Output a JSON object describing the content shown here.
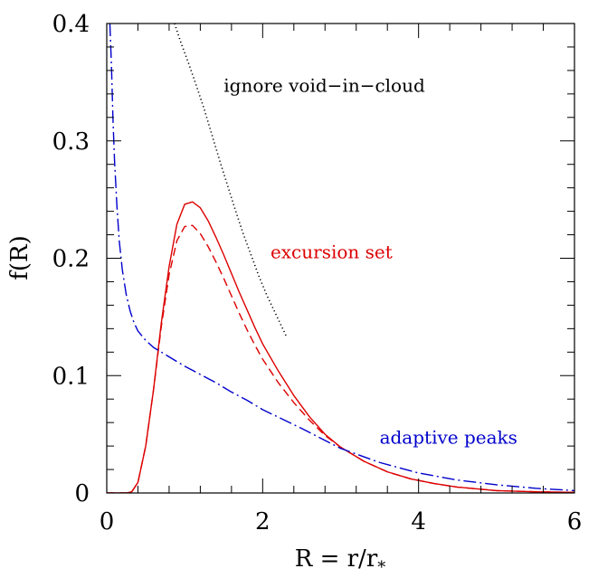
{
  "chart_data": {
    "type": "line",
    "xlabel": "R = r/r",
    "xlabel_subscript": "*",
    "ylabel": "f(R)",
    "xlim": [
      0,
      6
    ],
    "ylim": [
      0,
      0.4
    ],
    "x_major_ticks": [
      0,
      2,
      4,
      6
    ],
    "x_tick_labels": [
      "0",
      "2",
      "4",
      "6"
    ],
    "x_minor_step": 0.4,
    "y_major_ticks": [
      0,
      0.1,
      0.2,
      0.3,
      0.4
    ],
    "y_tick_labels": [
      "0",
      "0.1",
      "0.2",
      "0.3",
      "0.4"
    ],
    "y_minor_step": 0.02,
    "grid": false,
    "annotations": [
      {
        "text": "ignore void−in−cloud",
        "x": 1.5,
        "y": 0.342,
        "color": "#000000"
      },
      {
        "text": "excursion set",
        "x": 2.1,
        "y": 0.2,
        "color": "#dd0000"
      },
      {
        "text": "adaptive peaks",
        "x": 3.5,
        "y": 0.042,
        "color": "#0000cc"
      }
    ],
    "series": [
      {
        "style": "dotted",
        "color": "#000000",
        "x": [
          0.87,
          0.95,
          1.05,
          1.15,
          1.25,
          1.35,
          1.45,
          1.55,
          1.65,
          1.75,
          1.85,
          1.95,
          2.05,
          2.15,
          2.3
        ],
        "y": [
          0.4,
          0.384,
          0.366,
          0.347,
          0.327,
          0.305,
          0.283,
          0.262,
          0.241,
          0.221,
          0.203,
          0.185,
          0.169,
          0.155,
          0.134
        ]
      },
      {
        "style": "solid",
        "color": "#dd0000",
        "x": [
          0,
          0.25,
          0.32,
          0.4,
          0.5,
          0.6,
          0.7,
          0.8,
          0.9,
          1.0,
          1.1,
          1.2,
          1.3,
          1.4,
          1.5,
          1.6,
          1.7,
          1.8,
          1.9,
          2.0,
          2.2,
          2.4,
          2.6,
          2.8,
          3.0,
          3.3,
          3.6,
          3.9,
          4.2,
          4.5,
          5.0,
          5.5,
          6.0
        ],
        "y": [
          0,
          0,
          0.001,
          0.009,
          0.04,
          0.088,
          0.145,
          0.193,
          0.229,
          0.246,
          0.248,
          0.243,
          0.232,
          0.218,
          0.203,
          0.187,
          0.171,
          0.156,
          0.141,
          0.127,
          0.104,
          0.083,
          0.065,
          0.05,
          0.039,
          0.027,
          0.018,
          0.012,
          0.008,
          0.005,
          0.002,
          0.001,
          0.0005
        ]
      },
      {
        "style": "dashed",
        "color": "#dd0000",
        "x": [
          0,
          0.25,
          0.32,
          0.4,
          0.5,
          0.6,
          0.7,
          0.8,
          0.9,
          1.0,
          1.1,
          1.2,
          1.3,
          1.4,
          1.5,
          1.6,
          1.7,
          1.8,
          1.9,
          2.0,
          2.2,
          2.4,
          2.6,
          2.8,
          3.0,
          3.3,
          3.6,
          3.9,
          4.2,
          4.5,
          5.0,
          5.5,
          6.0
        ],
        "y": [
          0,
          0,
          0.001,
          0.009,
          0.04,
          0.088,
          0.142,
          0.186,
          0.215,
          0.227,
          0.228,
          0.221,
          0.21,
          0.197,
          0.183,
          0.168,
          0.153,
          0.139,
          0.126,
          0.114,
          0.094,
          0.077,
          0.062,
          0.049,
          0.039,
          0.027,
          0.018,
          0.012,
          0.008,
          0.005,
          0.002,
          0.001,
          0.0005
        ]
      },
      {
        "style": "dashdot",
        "color": "#0000cc",
        "x": [
          0.04,
          0.06,
          0.08,
          0.1,
          0.13,
          0.16,
          0.2,
          0.25,
          0.3,
          0.35,
          0.4,
          0.5,
          0.6,
          0.7,
          0.8,
          1.0,
          1.2,
          1.4,
          1.6,
          1.8,
          2.0,
          2.5,
          3.0,
          3.5,
          4.0,
          4.5,
          5.0,
          5.5,
          6.0
        ],
        "y": [
          0.4,
          0.365,
          0.318,
          0.283,
          0.245,
          0.215,
          0.19,
          0.169,
          0.155,
          0.145,
          0.138,
          0.13,
          0.124,
          0.12,
          0.116,
          0.108,
          0.101,
          0.094,
          0.086,
          0.079,
          0.071,
          0.055,
          0.038,
          0.026,
          0.017,
          0.011,
          0.007,
          0.004,
          0.002
        ]
      }
    ]
  }
}
